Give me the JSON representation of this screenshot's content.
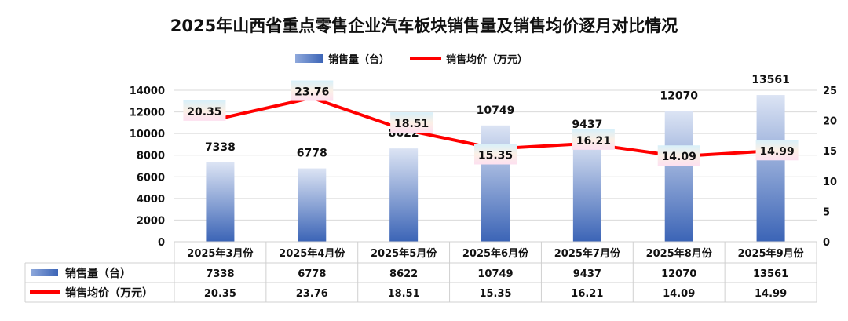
{
  "chart_data": {
    "type": "bar",
    "title": "2025年山西省重点零售企业汽车板块销售量及销售均价逐月对比情况",
    "categories": [
      "2025年3月份",
      "2025年4月份",
      "2025年5月份",
      "2025年6月份",
      "2025年7月份",
      "2025年8月份",
      "2025年9月份"
    ],
    "series": [
      {
        "name": "销售量（台）",
        "type": "bar",
        "axis": "left",
        "values": [
          7338,
          6778,
          8622,
          10749,
          9437,
          12070,
          13561
        ],
        "labels": [
          "7338",
          "6778",
          "8622",
          "10749",
          "9437",
          "12070",
          "13561"
        ]
      },
      {
        "name": "销售均价（万元）",
        "type": "line",
        "axis": "right",
        "values": [
          20.35,
          23.76,
          18.51,
          15.35,
          16.21,
          14.09,
          14.99
        ],
        "labels": [
          "20.35",
          "23.76",
          "18.51",
          "15.35",
          "16.21",
          "14.09",
          "14.99"
        ]
      }
    ],
    "ylim": [
      0,
      14000
    ],
    "yticks": [
      "0",
      "2000",
      "4000",
      "6000",
      "8000",
      "10000",
      "12000",
      "14000"
    ],
    "y2lim": [
      0,
      25
    ],
    "y2ticks": [
      "0",
      "5",
      "10",
      "15",
      "20",
      "25"
    ],
    "legend": "top",
    "grid": true,
    "colors": {
      "bar_top": "#dce4f4",
      "bar_bottom": "#3b64b6",
      "line": "#ff0000"
    }
  }
}
